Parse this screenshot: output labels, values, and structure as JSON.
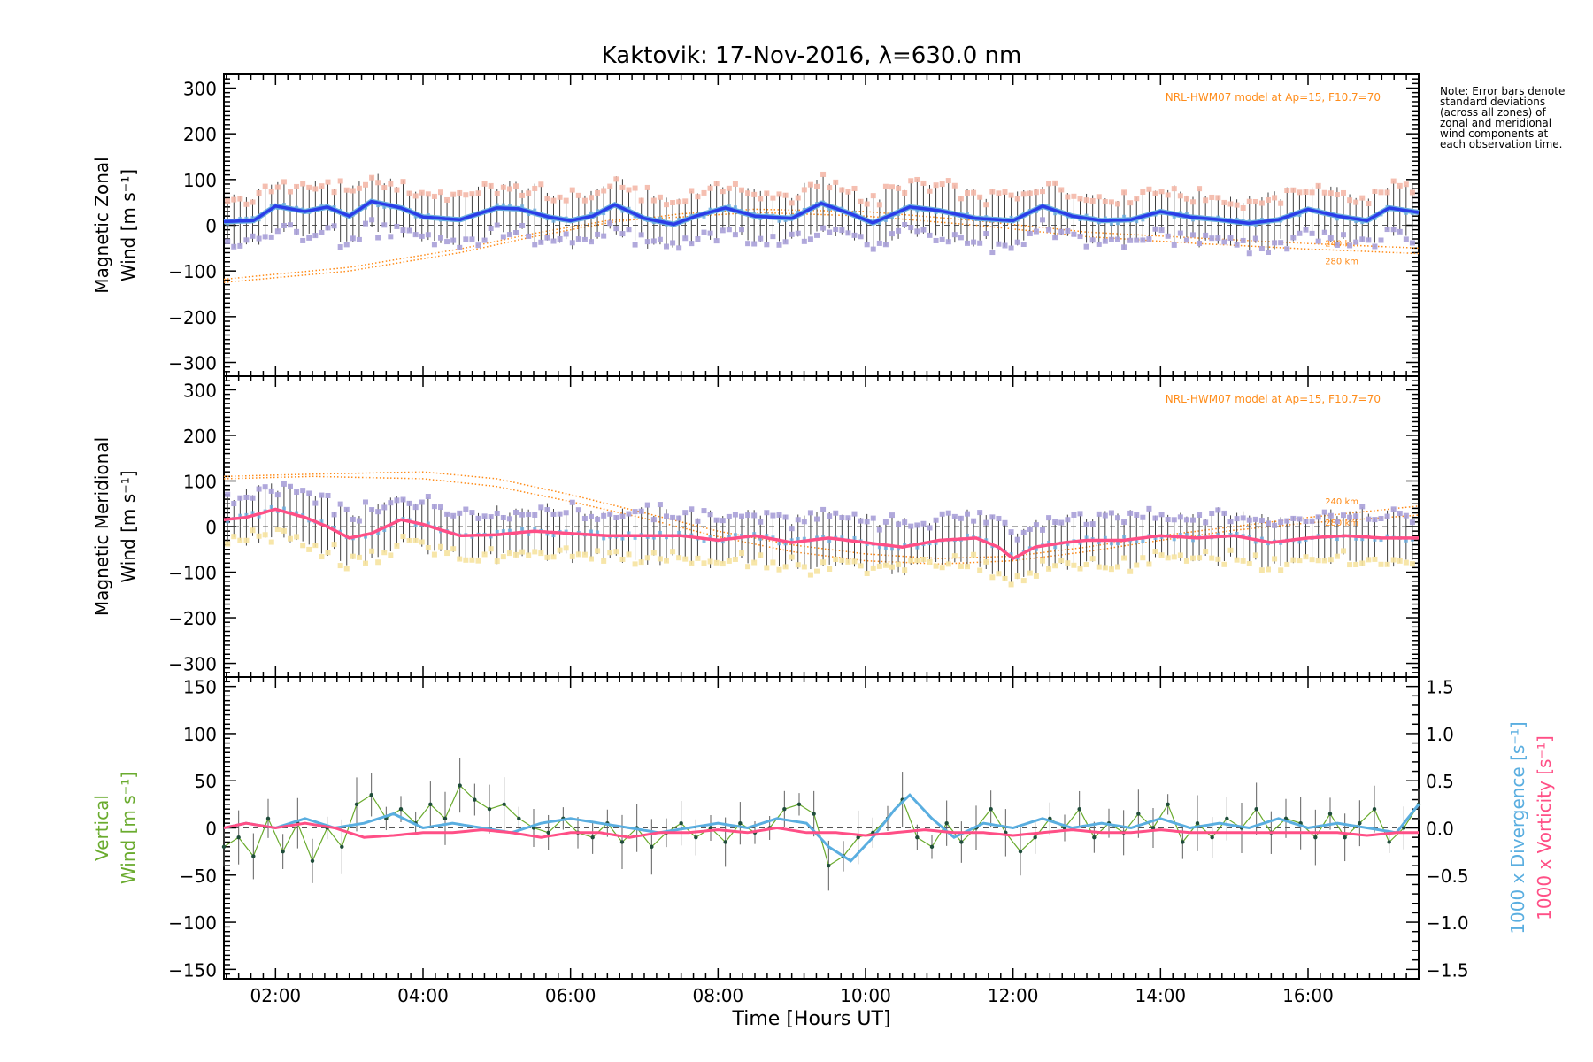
{
  "title": "Kaktovik: 17-Nov-2016, λ=630.0 nm",
  "xlabel": "Time [Hours UT]",
  "note": "Note: Error bars denote standard deviations (across all zones) of zonal and meridional wind components at each observation time.",
  "colors": {
    "zonal": "#2a3de8",
    "zonal_light": "#6aaee0",
    "meridional": "#ff4f86",
    "model": "#ff8c1a",
    "errorbar": "#404040",
    "green": "#6aab2e",
    "divergence": "#5aaee0",
    "vorticity": "#ff4f86",
    "lavender": "#a8a0d8",
    "peach": "#f4b8a8",
    "yellow": "#f6e3a0"
  },
  "chart_data": [
    {
      "type": "line",
      "panel": "zonal",
      "ylabel": "Magnetic Zonal Wind [m s⁻¹]",
      "ylim": [
        -330,
        330
      ],
      "yticks": [
        300,
        200,
        100,
        0,
        -100,
        -200,
        -300
      ],
      "xlim": [
        1.3,
        17.5
      ],
      "xticks": [
        "02:00",
        "04:00",
        "06:00",
        "08:00",
        "10:00",
        "12:00",
        "14:00",
        "16:00"
      ],
      "model_label": "NRL-HWM07 model at Ap=15, F10.7=70",
      "model_altitudes": [
        "240 km",
        "280 km"
      ],
      "series": [
        {
          "x": [
            1.3,
            1.7,
            2.0,
            2.4,
            2.7,
            3.0,
            3.3,
            3.7,
            4.0,
            4.5,
            5.0,
            5.3,
            5.7,
            6.0,
            6.3,
            6.6,
            7.0,
            7.4,
            7.7,
            8.1,
            8.5,
            9.0,
            9.4,
            9.8,
            10.1,
            10.6,
            11.0,
            11.5,
            12.0,
            12.4,
            12.8,
            13.2,
            13.6,
            14.0,
            14.4,
            14.8,
            15.2,
            15.6,
            16.0,
            16.4,
            16.8,
            17.1,
            17.5
          ],
          "values": [
            8,
            10,
            42,
            30,
            40,
            20,
            52,
            38,
            18,
            12,
            38,
            36,
            18,
            10,
            20,
            45,
            15,
            2,
            20,
            38,
            20,
            15,
            48,
            25,
            5,
            40,
            32,
            15,
            10,
            42,
            20,
            10,
            12,
            30,
            18,
            12,
            4,
            12,
            35,
            20,
            10,
            38,
            28
          ]
        }
      ],
      "model": [
        {
          "label": "240 km",
          "x": [
            1.3,
            3.0,
            4.5,
            5.5,
            6.5,
            7.5,
            8.5,
            10.0,
            11.5,
            13.0,
            14.5,
            16.0,
            17.5
          ],
          "values": [
            -125,
            -100,
            -60,
            -25,
            5,
            25,
            35,
            30,
            10,
            -15,
            -28,
            -40,
            -50
          ]
        },
        {
          "label": "280 km",
          "x": [
            1.3,
            3.0,
            4.5,
            5.5,
            6.5,
            7.5,
            8.5,
            10.0,
            11.5,
            13.0,
            14.5,
            16.0,
            17.5
          ],
          "values": [
            -118,
            -92,
            -52,
            -18,
            10,
            18,
            28,
            20,
            0,
            -25,
            -40,
            -52,
            -62
          ]
        }
      ]
    },
    {
      "type": "line",
      "panel": "meridional",
      "ylabel": "Magnetic Meridional Wind [m s⁻¹]",
      "ylim": [
        -330,
        330
      ],
      "yticks": [
        300,
        200,
        100,
        0,
        -100,
        -200,
        -300
      ],
      "xlim": [
        1.3,
        17.5
      ],
      "model_label": "NRL-HWM07 model at Ap=15, F10.7=70",
      "model_altitudes": [
        "240 km",
        "280 km"
      ],
      "series": [
        {
          "x": [
            1.3,
            1.6,
            2.0,
            2.4,
            2.7,
            3.0,
            3.3,
            3.7,
            4.0,
            4.5,
            5.0,
            5.5,
            6.0,
            6.5,
            7.0,
            7.5,
            8.0,
            8.5,
            9.0,
            9.5,
            10.0,
            10.5,
            11.0,
            11.5,
            11.8,
            12.0,
            12.3,
            12.7,
            13.0,
            13.5,
            14.0,
            14.5,
            15.0,
            15.5,
            16.0,
            16.5,
            17.0,
            17.5
          ],
          "values": [
            15,
            20,
            38,
            20,
            0,
            -25,
            -15,
            15,
            5,
            -20,
            -18,
            -10,
            -15,
            -20,
            -20,
            -20,
            -30,
            -20,
            -35,
            -25,
            -35,
            -45,
            -30,
            -25,
            -45,
            -70,
            -45,
            -35,
            -30,
            -30,
            -20,
            -25,
            -20,
            -35,
            -25,
            -20,
            -25,
            -25
          ]
        }
      ],
      "model": [
        {
          "label": "240 km",
          "x": [
            1.3,
            2.5,
            4.0,
            5.0,
            6.0,
            7.0,
            8.0,
            9.0,
            10.0,
            11.0,
            12.0,
            13.0,
            14.0,
            15.0,
            16.0,
            17.5
          ],
          "values": [
            110,
            115,
            120,
            105,
            70,
            30,
            -10,
            -40,
            -60,
            -70,
            -65,
            -45,
            -20,
            0,
            20,
            45
          ]
        },
        {
          "label": "280 km",
          "x": [
            1.3,
            2.5,
            4.0,
            5.0,
            6.0,
            7.0,
            8.0,
            9.0,
            10.0,
            11.0,
            12.0,
            13.0,
            14.0,
            15.0,
            16.0,
            17.5
          ],
          "values": [
            105,
            110,
            105,
            88,
            55,
            18,
            -22,
            -55,
            -75,
            -82,
            -75,
            -55,
            -30,
            -8,
            8,
            25
          ]
        }
      ]
    },
    {
      "type": "line",
      "panel": "vertical",
      "ylabel": "Vertical Wind [m s⁻¹]",
      "ylim": [
        -160,
        160
      ],
      "yticks": [
        150,
        100,
        50,
        0,
        -50,
        -100,
        -150
      ],
      "xlim": [
        1.3,
        17.5
      ],
      "y2label_divergence": "1000 x Divergence [s⁻¹]",
      "y2label_vorticity": "1000 x Vorticity [s⁻¹]",
      "y2lim": [
        -1.6,
        1.6
      ],
      "y2ticks": [
        "1.5",
        "1.0",
        "0.5",
        "0.0",
        "-0.5",
        "-1.0",
        "-1.5"
      ],
      "series": [
        {
          "name": "Vertical Wind",
          "x": [
            1.3,
            1.5,
            1.7,
            1.9,
            2.1,
            2.3,
            2.5,
            2.7,
            2.9,
            3.1,
            3.3,
            3.5,
            3.7,
            3.9,
            4.1,
            4.3,
            4.5,
            4.7,
            4.9,
            5.1,
            5.3,
            5.5,
            5.7,
            5.9,
            6.1,
            6.3,
            6.5,
            6.7,
            6.9,
            7.1,
            7.3,
            7.5,
            7.7,
            7.9,
            8.1,
            8.3,
            8.5,
            8.7,
            8.9,
            9.1,
            9.3,
            9.5,
            9.7,
            9.9,
            10.1,
            10.3,
            10.5,
            10.7,
            10.9,
            11.1,
            11.3,
            11.5,
            11.7,
            11.9,
            12.1,
            12.3,
            12.5,
            12.7,
            12.9,
            13.1,
            13.3,
            13.5,
            13.7,
            13.9,
            14.1,
            14.3,
            14.5,
            14.7,
            14.9,
            15.1,
            15.3,
            15.5,
            15.7,
            15.9,
            16.1,
            16.3,
            16.5,
            16.7,
            16.9,
            17.1,
            17.3,
            17.5
          ],
          "values": [
            -20,
            -10,
            -30,
            10,
            -25,
            5,
            -35,
            0,
            -20,
            25,
            35,
            10,
            20,
            5,
            25,
            10,
            45,
            30,
            20,
            25,
            10,
            0,
            -5,
            10,
            -5,
            -10,
            5,
            -15,
            0,
            -20,
            -5,
            5,
            -10,
            0,
            -15,
            5,
            -5,
            0,
            20,
            25,
            15,
            -40,
            -30,
            -10,
            -5,
            10,
            30,
            -10,
            -20,
            5,
            -15,
            0,
            20,
            -5,
            -25,
            -10,
            10,
            0,
            20,
            -10,
            5,
            -5,
            15,
            0,
            25,
            -15,
            5,
            -10,
            10,
            0,
            20,
            -5,
            10,
            5,
            -10,
            15,
            -10,
            5,
            20,
            -15,
            0,
            25
          ]
        },
        {
          "name": "1000 x Divergence",
          "x": [
            1.3,
            1.6,
            2.0,
            2.4,
            2.8,
            3.2,
            3.6,
            4.0,
            4.4,
            4.8,
            5.2,
            5.6,
            6.0,
            6.4,
            6.8,
            7.2,
            7.6,
            8.0,
            8.4,
            8.8,
            9.2,
            9.5,
            9.8,
            10.1,
            10.4,
            10.6,
            10.9,
            11.2,
            11.6,
            12.0,
            12.4,
            12.8,
            13.2,
            13.6,
            14.0,
            14.4,
            14.8,
            15.2,
            15.6,
            16.0,
            16.4,
            16.8,
            17.2,
            17.5
          ],
          "values": [
            0.0,
            0.05,
            0.0,
            0.1,
            0.0,
            0.05,
            0.15,
            0.0,
            0.05,
            0.0,
            -0.05,
            0.05,
            0.1,
            0.05,
            0.0,
            -0.05,
            0.0,
            0.05,
            0.0,
            0.1,
            0.05,
            -0.2,
            -0.35,
            -0.1,
            0.2,
            0.35,
            0.1,
            -0.1,
            0.05,
            0.0,
            0.1,
            0.0,
            0.05,
            0.0,
            0.1,
            0.0,
            0.05,
            0.0,
            0.1,
            0.0,
            0.05,
            0.0,
            -0.05,
            0.25
          ]
        },
        {
          "name": "1000 x Vorticity",
          "x": [
            1.3,
            1.6,
            2.0,
            2.4,
            2.8,
            3.2,
            3.6,
            4.0,
            4.4,
            4.8,
            5.2,
            5.6,
            6.0,
            6.4,
            6.8,
            7.2,
            7.6,
            8.0,
            8.4,
            8.8,
            9.2,
            9.6,
            10.0,
            10.4,
            10.8,
            11.2,
            11.6,
            12.0,
            12.4,
            12.8,
            13.2,
            13.6,
            14.0,
            14.4,
            14.8,
            15.2,
            15.6,
            16.0,
            16.4,
            16.8,
            17.2,
            17.5
          ],
          "values": [
            0.0,
            0.05,
            0.0,
            0.05,
            0.0,
            -0.1,
            -0.08,
            -0.05,
            -0.05,
            -0.02,
            -0.05,
            -0.1,
            -0.05,
            -0.05,
            -0.1,
            -0.05,
            -0.05,
            -0.02,
            -0.05,
            0.0,
            -0.05,
            -0.05,
            -0.08,
            -0.05,
            -0.02,
            -0.05,
            -0.05,
            -0.08,
            -0.05,
            -0.02,
            -0.05,
            -0.05,
            -0.02,
            -0.05,
            -0.05,
            -0.05,
            -0.05,
            -0.05,
            -0.05,
            -0.08,
            -0.05,
            -0.05
          ]
        }
      ]
    }
  ]
}
